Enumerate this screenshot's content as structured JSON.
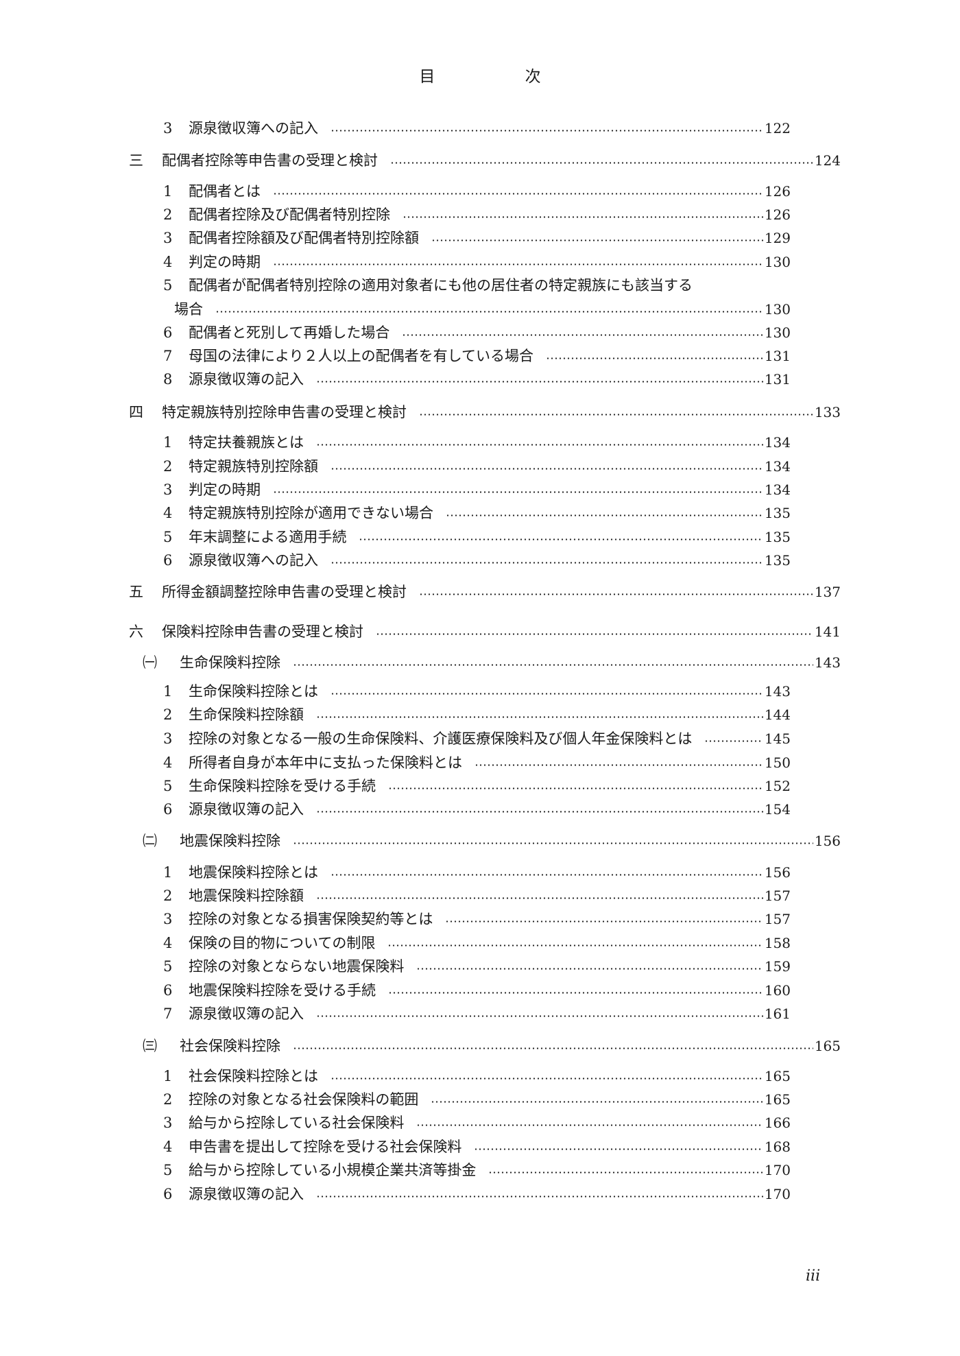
{
  "title": {
    "chars": [
      "目",
      "次"
    ]
  },
  "entries": [
    {
      "level": "sub",
      "num": "3",
      "text": "源泉徴収簿への記入",
      "page": "122"
    },
    {
      "level": "section",
      "num": "三",
      "text": "配偶者控除等申告書の受理と検討",
      "page": "124"
    },
    {
      "level": "sub",
      "num": "1",
      "text": "配偶者とは",
      "page": "126"
    },
    {
      "level": "sub",
      "num": "2",
      "text": "配偶者控除及び配偶者特別控除",
      "page": "126"
    },
    {
      "level": "sub",
      "num": "3",
      "text": "配偶者控除額及び配偶者特別控除額",
      "page": "129"
    },
    {
      "level": "sub",
      "num": "4",
      "text": "判定の時期",
      "page": "130"
    },
    {
      "level": "sub",
      "num": "5",
      "text": "配偶者が配偶者特別控除の適用対象者にも他の居住者の特定親族にも該当する",
      "page": ""
    },
    {
      "level": "cont",
      "num": "",
      "text": "場合",
      "page": "130"
    },
    {
      "level": "sub",
      "num": "6",
      "text": "配偶者と死別して再婚した場合",
      "page": "130"
    },
    {
      "level": "sub",
      "num": "7",
      "text": "母国の法律により２人以上の配偶者を有している場合",
      "page": "131"
    },
    {
      "level": "sub",
      "num": "8",
      "text": "源泉徴収簿の記入",
      "page": "131"
    },
    {
      "level": "section",
      "num": "四",
      "text": "特定親族特別控除申告書の受理と検討",
      "page": "133"
    },
    {
      "level": "sub",
      "num": "1",
      "text": "特定扶養親族とは",
      "page": "134"
    },
    {
      "level": "sub",
      "num": "2",
      "text": "特定親族特別控除額",
      "page": "134"
    },
    {
      "level": "sub",
      "num": "3",
      "text": "判定の時期",
      "page": "134"
    },
    {
      "level": "sub",
      "num": "4",
      "text": "特定親族特別控除が適用できない場合",
      "page": "135"
    },
    {
      "level": "sub",
      "num": "5",
      "text": "年末調整による適用手続",
      "page": "135"
    },
    {
      "level": "sub",
      "num": "6",
      "text": "源泉徴収簿への記入",
      "page": "135"
    },
    {
      "level": "section",
      "num": "五",
      "text": "所得金額調整控除申告書の受理と検討",
      "page": "137"
    },
    {
      "level": "section",
      "num": "六",
      "text": "保険料控除申告書の受理と検討",
      "page": "141"
    },
    {
      "level": "group",
      "num": "㈠",
      "text": "生命保険料控除",
      "page": "143"
    },
    {
      "level": "sub",
      "num": "1",
      "text": "生命保険料控除とは",
      "page": "143"
    },
    {
      "level": "sub",
      "num": "2",
      "text": "生命保険料控除額",
      "page": "144"
    },
    {
      "level": "sub",
      "num": "3",
      "text": "控除の対象となる一般の生命保険料、介護医療保険料及び個人年金保険料とは",
      "page": "145"
    },
    {
      "level": "sub",
      "num": "4",
      "text": "所得者自身が本年中に支払った保険料とは",
      "page": "150"
    },
    {
      "level": "sub",
      "num": "5",
      "text": "生命保険料控除を受ける手続",
      "page": "152"
    },
    {
      "level": "sub",
      "num": "6",
      "text": "源泉徴収簿の記入",
      "page": "154"
    },
    {
      "level": "group",
      "num": "㈡",
      "text": "地震保険料控除",
      "page": "156"
    },
    {
      "level": "sub",
      "num": "1",
      "text": "地震保険料控除とは",
      "page": "156"
    },
    {
      "level": "sub",
      "num": "2",
      "text": "地震保険料控除額",
      "page": "157"
    },
    {
      "level": "sub",
      "num": "3",
      "text": "控除の対象となる損害保険契約等とは",
      "page": "157"
    },
    {
      "level": "sub",
      "num": "4",
      "text": "保険の目的物についての制限",
      "page": "158"
    },
    {
      "level": "sub",
      "num": "5",
      "text": "控除の対象とならない地震保険料",
      "page": "159"
    },
    {
      "level": "sub",
      "num": "6",
      "text": "地震保険料控除を受ける手続",
      "page": "160"
    },
    {
      "level": "sub",
      "num": "7",
      "text": "源泉徴収簿の記入",
      "page": "161"
    },
    {
      "level": "group",
      "num": "㈢",
      "text": "社会保険料控除",
      "page": "165"
    },
    {
      "level": "sub",
      "num": "1",
      "text": "社会保険料控除とは",
      "page": "165"
    },
    {
      "level": "sub",
      "num": "2",
      "text": "控除の対象となる社会保険料の範囲",
      "page": "165"
    },
    {
      "level": "sub",
      "num": "3",
      "text": "給与から控除している社会保険料",
      "page": "166"
    },
    {
      "level": "sub",
      "num": "4",
      "text": "申告書を提出して控除を受ける社会保険料",
      "page": "168"
    },
    {
      "level": "sub",
      "num": "5",
      "text": "給与から控除している小規模企業共済等掛金",
      "page": "170"
    },
    {
      "level": "sub",
      "num": "6",
      "text": "源泉徴収簿の記入",
      "page": "170"
    }
  ],
  "folio": "iii"
}
